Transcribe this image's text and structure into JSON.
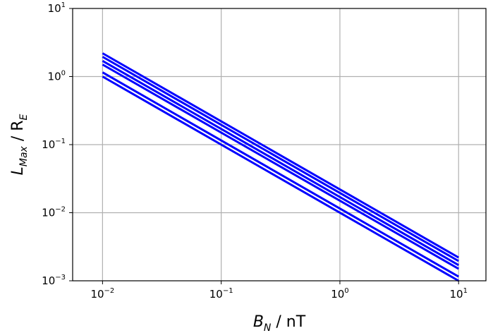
{
  "chart_data": {
    "type": "line",
    "x": [
      0.01,
      10
    ],
    "series": [
      {
        "color": "#0000ff",
        "values": [
          2.2,
          0.0022
        ]
      },
      {
        "color": "#0000ff",
        "values": [
          1.95,
          0.00195
        ]
      },
      {
        "color": "#0000ff",
        "values": [
          1.7,
          0.0017
        ]
      },
      {
        "color": "#0000ff",
        "values": [
          1.5,
          0.0015
        ]
      },
      {
        "color": "#0000ff",
        "values": [
          1.15,
          0.00115
        ]
      },
      {
        "color": "#0000ff",
        "values": [
          1.0,
          0.001
        ]
      }
    ],
    "xscale": "log",
    "yscale": "log",
    "xlim": [
      0.0056,
      17
    ],
    "ylim": [
      0.001,
      10
    ],
    "grid": true,
    "xticks": [
      {
        "base": "10",
        "exp": "−2"
      },
      {
        "base": "10",
        "exp": "−1"
      },
      {
        "base": "10",
        "exp": "0"
      },
      {
        "base": "10",
        "exp": "1"
      }
    ],
    "yticks": [
      {
        "base": "10",
        "exp": "−3"
      },
      {
        "base": "10",
        "exp": "−2"
      },
      {
        "base": "10",
        "exp": "−1"
      },
      {
        "base": "10",
        "exp": "0"
      },
      {
        "base": "10",
        "exp": "1"
      }
    ],
    "xlabel": {
      "main": "B",
      "sub": "N",
      "rest": " / nT"
    },
    "ylabel": {
      "main": "L",
      "sub": "Max",
      "mid": " / R",
      "sub2": "E"
    }
  }
}
